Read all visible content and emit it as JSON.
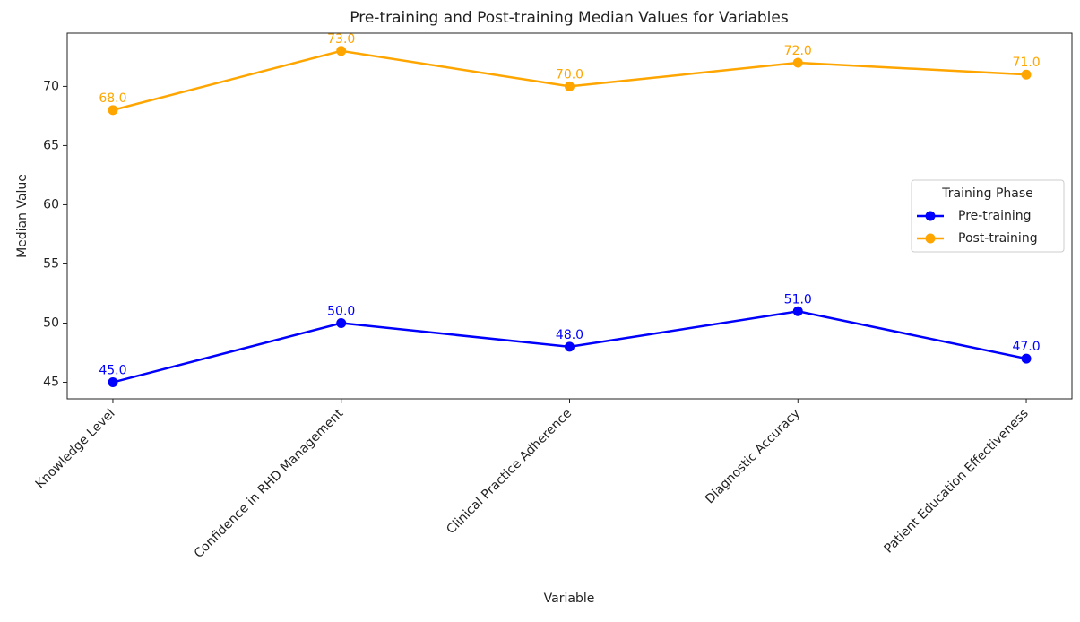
{
  "chart_data": {
    "type": "line",
    "title": "Pre-training and Post-training Median Values for Variables",
    "x_label": "Variable",
    "y_label": "Median Value",
    "categories": [
      "Knowledge Level",
      "Confidence in RHD Management",
      "Clinical Practice Adherence",
      "Diagnostic Accuracy",
      "Patient Education Effectiveness"
    ],
    "series": [
      {
        "name": "Pre-training",
        "color": "#0000ff",
        "values": [
          45,
          50,
          48,
          51,
          47
        ],
        "value_labels": [
          "45.0",
          "50.0",
          "48.0",
          "51.0",
          "47.0"
        ]
      },
      {
        "name": "Post-training",
        "color": "#ffa500",
        "values": [
          68,
          73,
          70,
          72,
          71
        ],
        "value_labels": [
          "68.0",
          "73.0",
          "70.0",
          "72.0",
          "71.0"
        ]
      }
    ],
    "ylim": [
      43.6,
      74.5
    ],
    "yticks": [
      45,
      50,
      55,
      60,
      65,
      70
    ],
    "grid": false,
    "legend_title": "Training Phase",
    "legend_position": "right"
  }
}
